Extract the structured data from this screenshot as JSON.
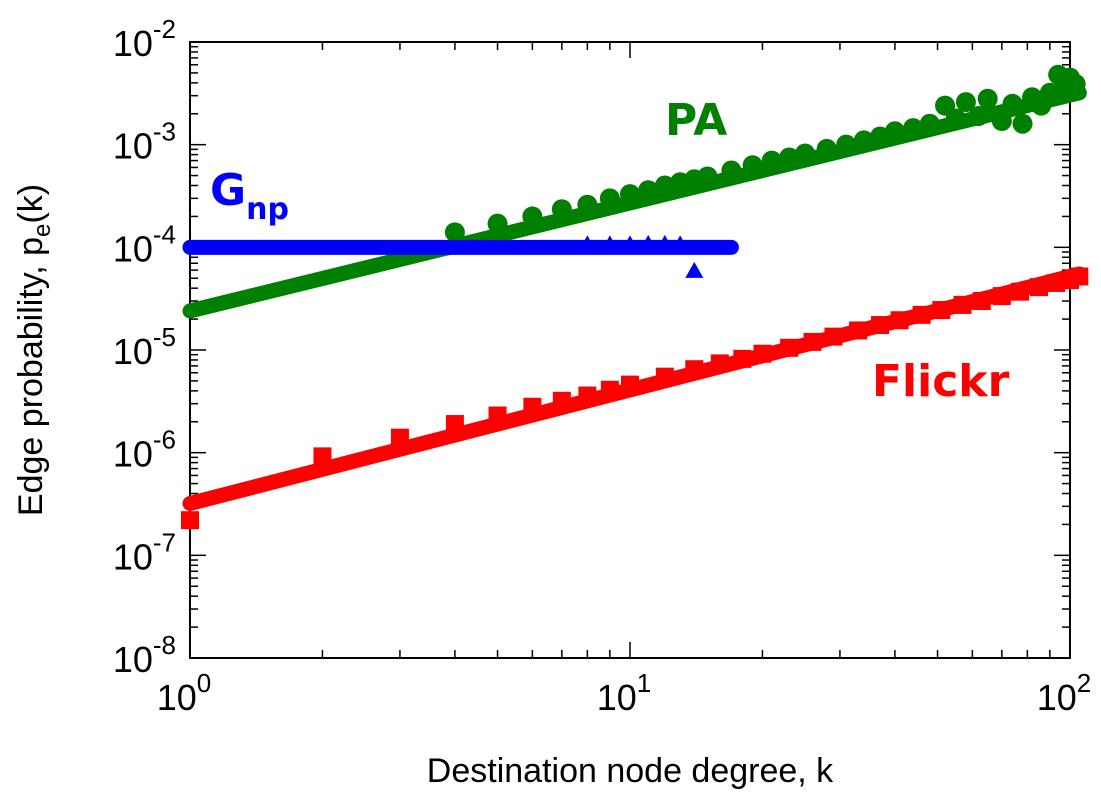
{
  "chart_data": {
    "type": "scatter",
    "xlabel": "Destination node degree, k",
    "ylabel": {
      "prefix": "Edge probability, p",
      "sub": "e",
      "suffix": "(k)"
    },
    "xscale": "log",
    "yscale": "log",
    "xlim": [
      1,
      100
    ],
    "ylim": [
      1e-08,
      0.01
    ],
    "x_ticks": [
      {
        "base": "10",
        "exp": "0",
        "value": 1
      },
      {
        "base": "10",
        "exp": "1",
        "value": 10
      },
      {
        "base": "10",
        "exp": "2",
        "value": 100
      }
    ],
    "y_ticks": [
      {
        "base": "10",
        "exp": "-8",
        "value": 1e-08
      },
      {
        "base": "10",
        "exp": "-7",
        "value": 1e-07
      },
      {
        "base": "10",
        "exp": "-6",
        "value": 1e-06
      },
      {
        "base": "10",
        "exp": "-5",
        "value": 1e-05
      },
      {
        "base": "10",
        "exp": "-4",
        "value": 0.0001
      },
      {
        "base": "10",
        "exp": "-3",
        "value": 0.001
      },
      {
        "base": "10",
        "exp": "-2",
        "value": 0.01
      }
    ],
    "grid": false,
    "series": [
      {
        "label_main": "PA",
        "label_sub": "",
        "color": "#008000",
        "marker": "circle",
        "fit": {
          "x": [
            1,
            105
          ],
          "y": [
            2.4e-05,
            0.0032
          ]
        },
        "points": [
          [
            4,
            0.00014
          ],
          [
            5,
            0.00017
          ],
          [
            6,
            0.0002
          ],
          [
            7,
            0.000235
          ],
          [
            8,
            0.00026
          ],
          [
            9,
            0.0003
          ],
          [
            10,
            0.00033
          ],
          [
            11,
            0.00036
          ],
          [
            12,
            0.0004
          ],
          [
            13,
            0.00043
          ],
          [
            14,
            0.00046
          ],
          [
            15,
            0.00049
          ],
          [
            17,
            0.00056
          ],
          [
            19,
            0.00063
          ],
          [
            21,
            0.0007
          ],
          [
            23,
            0.00075
          ],
          [
            25,
            0.00082
          ],
          [
            28,
            0.00091
          ],
          [
            31,
            0.001
          ],
          [
            34,
            0.0011
          ],
          [
            37,
            0.0012
          ],
          [
            40,
            0.00135
          ],
          [
            44,
            0.00145
          ],
          [
            48,
            0.0016
          ],
          [
            52,
            0.0024
          ],
          [
            55,
            0.0018
          ],
          [
            58,
            0.0026
          ],
          [
            62,
            0.0019
          ],
          [
            65,
            0.0028
          ],
          [
            70,
            0.0017
          ],
          [
            74,
            0.0025
          ],
          [
            78,
            0.0016
          ],
          [
            82,
            0.0029
          ],
          [
            86,
            0.0024
          ],
          [
            90,
            0.0032
          ],
          [
            94,
            0.0048
          ],
          [
            97,
            0.0035
          ],
          [
            100,
            0.0045
          ],
          [
            103,
            0.0039
          ]
        ]
      },
      {
        "label_main": "G",
        "label_sub": "np",
        "color": "#0000ff",
        "marker": "triangle",
        "fit": {
          "x": [
            1,
            17
          ],
          "y": [
            0.0001,
            0.0001
          ]
        },
        "points": [
          [
            8,
            0.000107
          ],
          [
            9,
            0.000107
          ],
          [
            10,
            0.000107
          ],
          [
            11,
            0.000108
          ],
          [
            12,
            0.000108
          ],
          [
            13,
            0.000107
          ],
          [
            14,
            5.9e-05
          ]
        ]
      },
      {
        "label_main": "Flickr",
        "label_sub": "",
        "color": "#ff0000",
        "marker": "square",
        "fit": {
          "x": [
            1,
            105
          ],
          "y": [
            3.2e-07,
            5.5e-05
          ]
        },
        "points": [
          [
            1,
            2.2e-07
          ],
          [
            2,
            9.2e-07
          ],
          [
            3,
            1.4e-06
          ],
          [
            4,
            1.9e-06
          ],
          [
            5,
            2.3e-06
          ],
          [
            6,
            2.8e-06
          ],
          [
            7,
            3.2e-06
          ],
          [
            8,
            3.6e-06
          ],
          [
            9,
            4.1e-06
          ],
          [
            10,
            4.6e-06
          ],
          [
            12,
            5.5e-06
          ],
          [
            14,
            6.5e-06
          ],
          [
            16,
            7.4e-06
          ],
          [
            18,
            8.2e-06
          ],
          [
            20,
            9.2e-06
          ],
          [
            23,
            1.05e-05
          ],
          [
            26,
            1.2e-05
          ],
          [
            29,
            1.35e-05
          ],
          [
            33,
            1.55e-05
          ],
          [
            37,
            1.75e-05
          ],
          [
            41,
            1.95e-05
          ],
          [
            46,
            2.2e-05
          ],
          [
            51,
            2.45e-05
          ],
          [
            57,
            2.75e-05
          ],
          [
            63,
            3e-05
          ],
          [
            70,
            3.35e-05
          ],
          [
            77,
            3.7e-05
          ],
          [
            85,
            4.1e-05
          ],
          [
            93,
            4.5e-05
          ],
          [
            100,
            4.8e-05
          ],
          [
            105,
            5.2e-05
          ]
        ]
      }
    ]
  }
}
